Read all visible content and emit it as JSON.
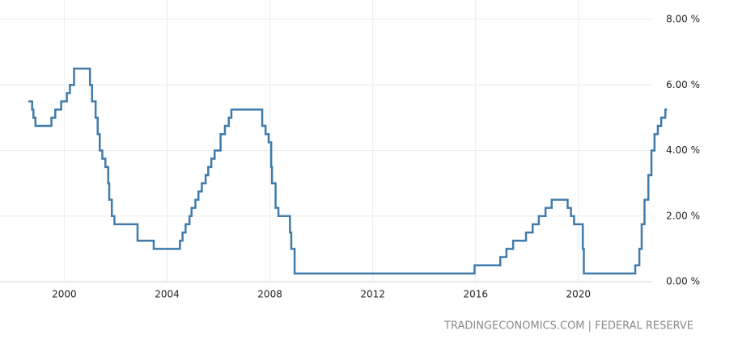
{
  "chart_data": {
    "type": "line",
    "source": "TRADINGECONOMICS.COM | FEDERAL RESERVE",
    "x": [
      1998.6,
      1998.75,
      1998.75,
      1998.8,
      1998.8,
      1998.88,
      1998.88,
      1999.5,
      1999.5,
      1999.65,
      1999.65,
      1999.88,
      1999.88,
      2000.1,
      2000.1,
      2000.22,
      2000.22,
      2000.38,
      2000.38,
      2001.0,
      2001.0,
      2001.08,
      2001.08,
      2001.22,
      2001.22,
      2001.3,
      2001.3,
      2001.38,
      2001.38,
      2001.48,
      2001.48,
      2001.6,
      2001.6,
      2001.71,
      2001.71,
      2001.75,
      2001.75,
      2001.85,
      2001.85,
      2001.95,
      2001.95,
      2002.85,
      2002.85,
      2003.48,
      2003.48,
      2004.5,
      2004.5,
      2004.6,
      2004.6,
      2004.72,
      2004.72,
      2004.87,
      2004.87,
      2004.95,
      2004.95,
      2005.1,
      2005.1,
      2005.22,
      2005.22,
      2005.35,
      2005.35,
      2005.5,
      2005.5,
      2005.6,
      2005.6,
      2005.72,
      2005.72,
      2005.85,
      2005.85,
      2006.08,
      2006.08,
      2006.25,
      2006.25,
      2006.4,
      2006.4,
      2006.5,
      2006.5,
      2007.7,
      2007.7,
      2007.83,
      2007.83,
      2007.95,
      2007.95,
      2008.05,
      2008.05,
      2008.08,
      2008.08,
      2008.22,
      2008.22,
      2008.33,
      2008.33,
      2008.78,
      2008.78,
      2008.83,
      2008.83,
      2008.96,
      2008.96,
      2015.96,
      2015.96,
      2016.96,
      2016.96,
      2017.2,
      2017.2,
      2017.46,
      2017.46,
      2017.96,
      2017.96,
      2018.22,
      2018.22,
      2018.46,
      2018.46,
      2018.72,
      2018.72,
      2018.96,
      2018.96,
      2019.58,
      2019.58,
      2019.71,
      2019.71,
      2019.83,
      2019.83,
      2020.17,
      2020.17,
      2020.21,
      2020.21,
      2022.21,
      2022.21,
      2022.37,
      2022.37,
      2022.46,
      2022.46,
      2022.57,
      2022.57,
      2022.72,
      2022.72,
      2022.84,
      2022.84,
      2022.96,
      2022.96,
      2023.09,
      2023.09,
      2023.22,
      2023.22,
      2023.38,
      2023.38,
      2023.45
    ],
    "values": [
      5.5,
      5.5,
      5.25,
      5.25,
      5.0,
      5.0,
      4.75,
      4.75,
      5.0,
      5.0,
      5.25,
      5.25,
      5.5,
      5.5,
      5.75,
      5.75,
      6.0,
      6.0,
      6.5,
      6.5,
      6.0,
      6.0,
      5.5,
      5.5,
      5.0,
      5.0,
      4.5,
      4.5,
      4.0,
      4.0,
      3.75,
      3.75,
      3.5,
      3.5,
      3.0,
      3.0,
      2.5,
      2.5,
      2.0,
      2.0,
      1.75,
      1.75,
      1.25,
      1.25,
      1.0,
      1.0,
      1.25,
      1.25,
      1.5,
      1.5,
      1.75,
      1.75,
      2.0,
      2.0,
      2.25,
      2.25,
      2.5,
      2.5,
      2.75,
      2.75,
      3.0,
      3.0,
      3.25,
      3.25,
      3.5,
      3.5,
      3.75,
      3.75,
      4.0,
      4.0,
      4.5,
      4.5,
      4.75,
      4.75,
      5.0,
      5.0,
      5.25,
      5.25,
      4.75,
      4.75,
      4.5,
      4.5,
      4.25,
      4.25,
      3.5,
      3.5,
      3.0,
      3.0,
      2.25,
      2.25,
      2.0,
      2.0,
      1.5,
      1.5,
      1.0,
      1.0,
      0.25,
      0.25,
      0.5,
      0.5,
      0.75,
      0.75,
      1.0,
      1.0,
      1.25,
      1.25,
      1.5,
      1.5,
      1.75,
      1.75,
      2.0,
      2.0,
      2.25,
      2.25,
      2.5,
      2.5,
      2.25,
      2.25,
      2.0,
      2.0,
      1.75,
      1.75,
      1.0,
      1.0,
      0.25,
      0.25,
      0.5,
      0.5,
      1.0,
      1.0,
      1.75,
      1.75,
      2.5,
      2.5,
      3.25,
      3.25,
      4.0,
      4.0,
      4.5,
      4.5,
      4.75,
      4.75,
      5.0,
      5.0,
      5.25,
      5.25
    ],
    "color": "#3f7bab",
    "xlim": [
      1997.5,
      2023.5
    ],
    "xticks": [
      2000,
      2004,
      2008,
      2012,
      2016,
      2020
    ],
    "ylim": [
      0,
      8
    ],
    "yticks": [
      {
        "value": 0,
        "label": "0.00 %"
      },
      {
        "value": 2,
        "label": "2.00 %"
      },
      {
        "value": 4,
        "label": "4.00 %"
      },
      {
        "value": 6,
        "label": "6.00 %"
      },
      {
        "value": 8,
        "label": "8.00 %"
      }
    ],
    "grid": true
  }
}
